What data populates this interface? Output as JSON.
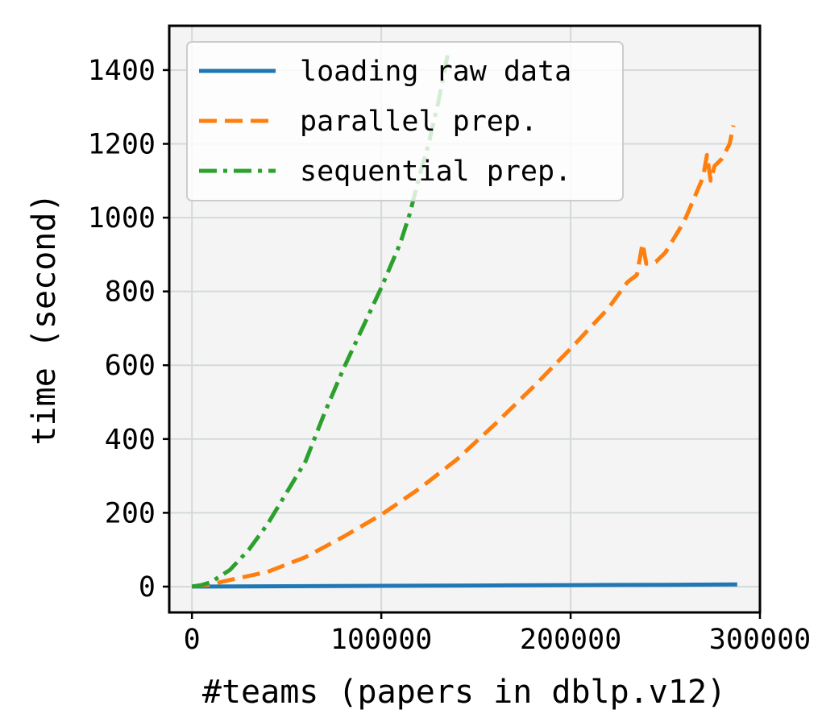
{
  "chart_data": {
    "type": "line",
    "title": "",
    "xlabel": "#teams (papers in dblp.v12)",
    "ylabel": "time (second)",
    "xlim": [
      -12000,
      300000
    ],
    "ylim": [
      -70,
      1520
    ],
    "xticks": [
      0,
      100000,
      200000,
      300000
    ],
    "xtick_labels": [
      "0",
      "100000",
      "200000",
      "300000"
    ],
    "yticks": [
      0,
      200,
      400,
      600,
      800,
      1000,
      1200,
      1400
    ],
    "ytick_labels": [
      "0",
      "200",
      "400",
      "600",
      "800",
      "1000",
      "1200",
      "1400"
    ],
    "grid": true,
    "legend_position": "top-left",
    "colors": {
      "loading": "#1f77b4",
      "parallel": "#ff7f0e",
      "sequential": "#2ca02c"
    },
    "series": [
      {
        "name": "loading raw data",
        "style": "solid",
        "x": [
          0,
          50000,
          100000,
          150000,
          200000,
          250000,
          288000
        ],
        "y": [
          0,
          1,
          2,
          3,
          4,
          5,
          6
        ]
      },
      {
        "name": "parallel prep.",
        "style": "dashed",
        "x": [
          0,
          10000,
          20000,
          40000,
          60000,
          80000,
          100000,
          120000,
          140000,
          160000,
          180000,
          200000,
          210000,
          220000,
          225000,
          230000,
          235000,
          238000,
          240000,
          245000,
          250000,
          260000,
          265000,
          270000,
          272000,
          274000,
          276000,
          280000,
          284000,
          286000
        ],
        "y": [
          0,
          6,
          18,
          40,
          80,
          135,
          195,
          265,
          345,
          440,
          540,
          645,
          700,
          755,
          790,
          825,
          845,
          930,
          875,
          880,
          905,
          990,
          1050,
          1110,
          1170,
          1100,
          1140,
          1160,
          1200,
          1250
        ]
      },
      {
        "name": "sequential prep.",
        "style": "dashdot",
        "x": [
          0,
          5000,
          10000,
          20000,
          30000,
          40000,
          50000,
          60000,
          70000,
          80000,
          90000,
          100000,
          110000,
          115000,
          120000,
          125000,
          130000,
          135000
        ],
        "y": [
          0,
          4,
          12,
          45,
          100,
          170,
          255,
          340,
          470,
          590,
          700,
          810,
          930,
          1010,
          1110,
          1200,
          1310,
          1440
        ]
      }
    ]
  }
}
